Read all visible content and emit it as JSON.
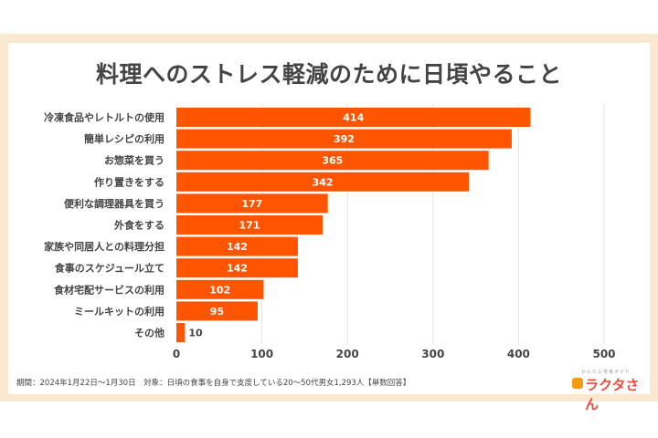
{
  "chart_data": {
    "type": "bar",
    "orientation": "horizontal",
    "title": "料理へのストレス軽減のために日頃やること",
    "categories": [
      "冷凍食品やレトルトの使用",
      "簡単レシピの利用",
      "お惣菜を買う",
      "作り置きをする",
      "便利な調理器具を買う",
      "外食をする",
      "家族や同居人との料理分担",
      "食事のスケジュール立て",
      "食材宅配サービスの利用",
      "ミールキットの利用",
      "その他"
    ],
    "values": [
      414,
      392,
      365,
      342,
      177,
      171,
      142,
      142,
      102,
      95,
      10
    ],
    "xlim": [
      0,
      500
    ],
    "xticks": [
      "0",
      "100",
      "200",
      "300",
      "400",
      "500"
    ],
    "grid": true,
    "bar_color": "#ff5500"
  },
  "footer": {
    "note": "期間：2024年1月22日〜1月30日　対象：日頃の食事を自身で支度している20〜50代男女1,293人【単数回答】"
  },
  "logo": {
    "sub": "かんたん宅食ガイド",
    "main": "ラクタさん"
  }
}
